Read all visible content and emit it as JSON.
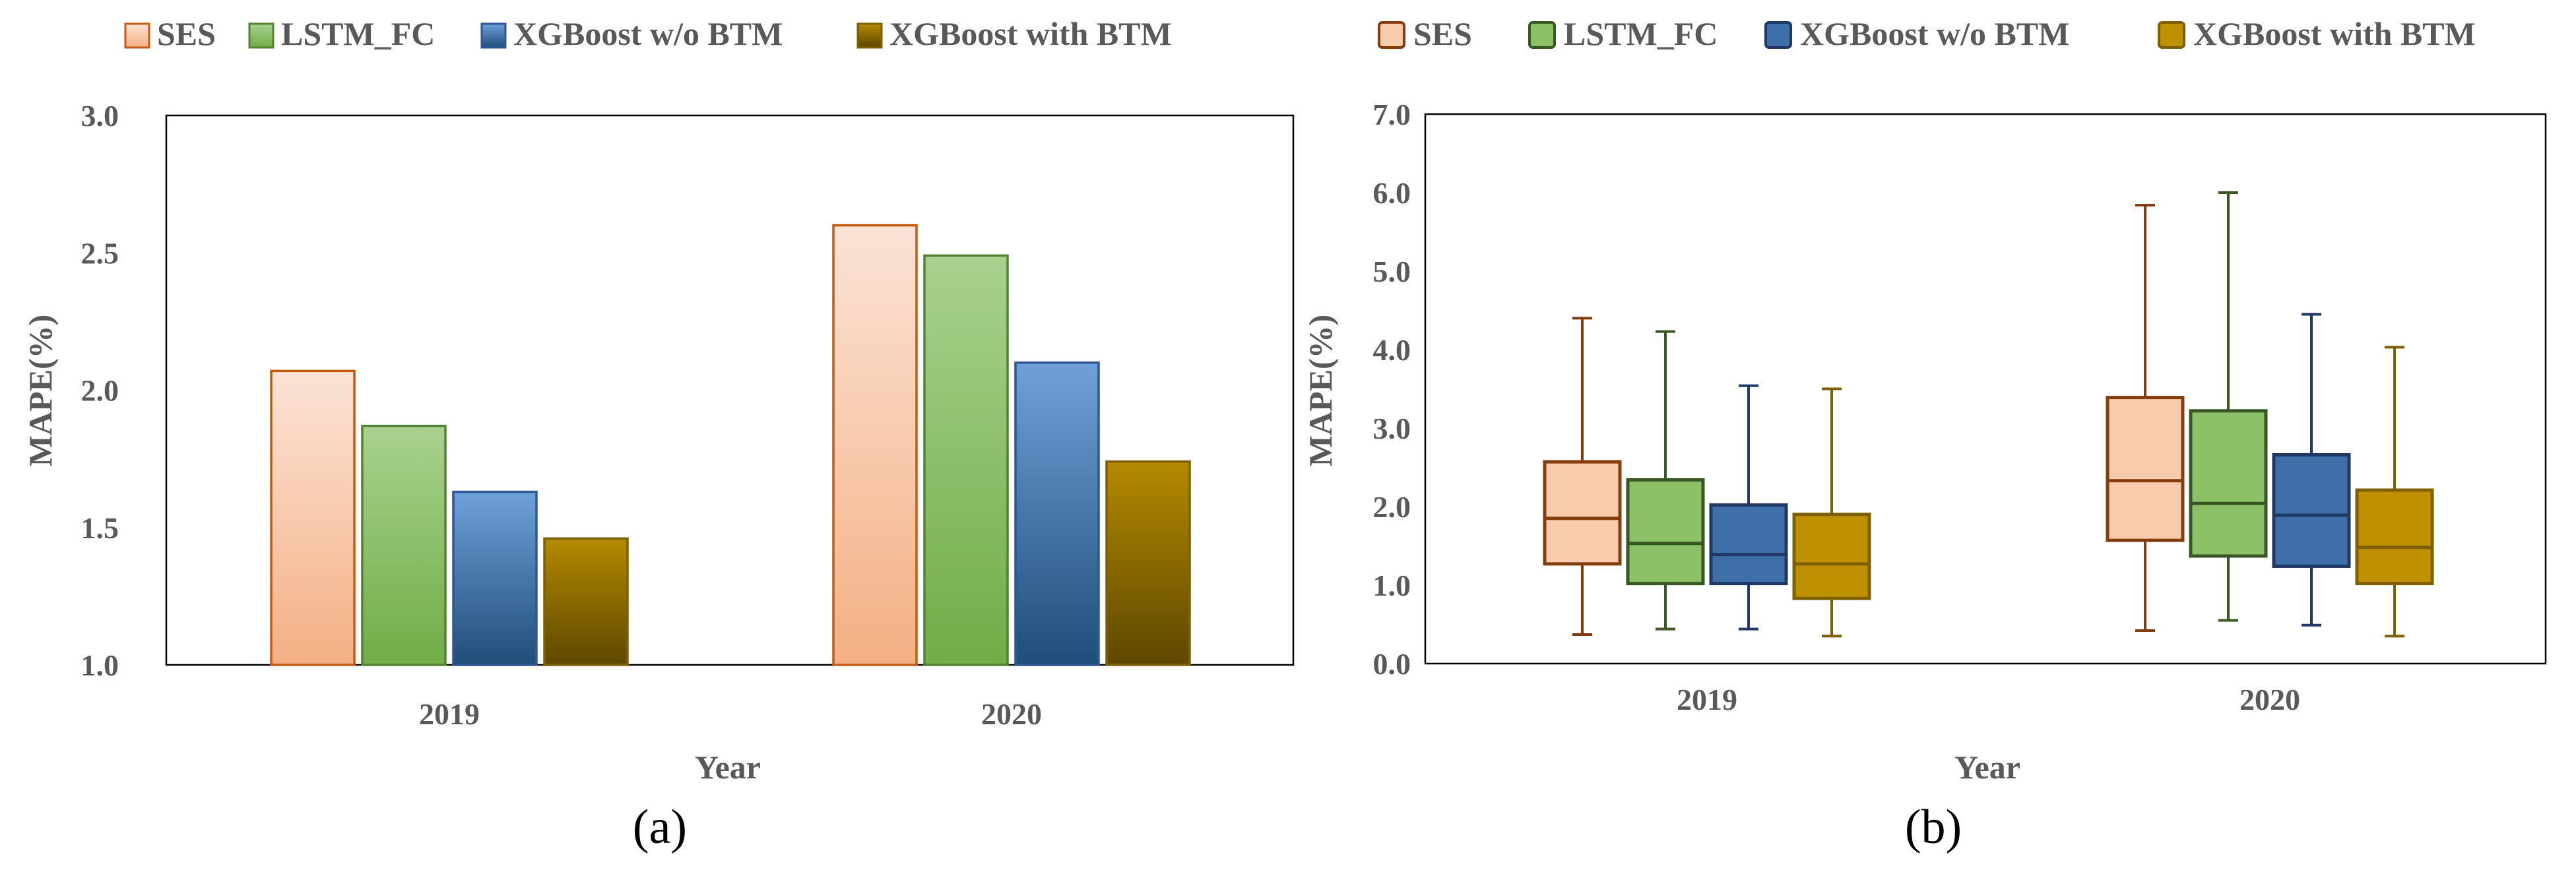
{
  "figure": {
    "panel_a_label": "(a)",
    "panel_b_label": "(b)"
  },
  "colors": {
    "ses_stroke": "#C55A11",
    "ses_top": "#FBE3D6",
    "ses_bottom": "#F4B084",
    "lstm_stroke": "#548235",
    "lstm_top": "#A9D18E",
    "lstm_bottom": "#70AD47",
    "xgb_stroke": "#2F5597",
    "xgb_top": "#6FA0D9",
    "xgb_bottom": "#1F4E79",
    "xgbbtm_stroke": "#7F6000",
    "xgbbtm_top": "#B48A00",
    "xgbbtm_bottom": "#5E4700",
    "box_ses_stroke": "#843C0C",
    "box_ses_fill": "#F8CBAD",
    "box_lstm_stroke": "#385723",
    "box_lstm_fill": "#8CC168",
    "box_xgb_stroke": "#203864",
    "box_xgb_fill": "#3F6FA8",
    "box_xgbbtm_stroke": "#7F6000",
    "box_xgbbtm_fill": "#BF9000",
    "text": "#595959",
    "axis": "#000000"
  },
  "chart_data": [
    {
      "type": "bar",
      "title": "",
      "xlabel": "Year",
      "ylabel": "MAPE(%)",
      "ylim": [
        1.0,
        3.0
      ],
      "yticks": [
        "1.0",
        "1.5",
        "2.0",
        "2.5",
        "3.0"
      ],
      "ytick_values": [
        1.0,
        1.5,
        2.0,
        2.5,
        3.0
      ],
      "legend_position": "top",
      "categories": [
        "2019",
        "2020"
      ],
      "series": [
        {
          "name": "SES",
          "key": "ses",
          "values": [
            2.07,
            2.6
          ]
        },
        {
          "name": "LSTM_FC",
          "key": "lstm",
          "values": [
            1.87,
            2.49
          ]
        },
        {
          "name": "XGBoost w/o BTM",
          "key": "xgb",
          "values": [
            1.63,
            2.1
          ]
        },
        {
          "name": "XGBoost with BTM",
          "key": "xgbbtm",
          "values": [
            1.46,
            1.74
          ]
        }
      ]
    },
    {
      "type": "box",
      "title": "",
      "xlabel": "Year",
      "ylabel": "MAPE(%)",
      "ylim": [
        0.0,
        7.0
      ],
      "yticks": [
        "0.0",
        "1.0",
        "2.0",
        "3.0",
        "4.0",
        "5.0",
        "6.0",
        "7.0"
      ],
      "ytick_values": [
        0,
        1,
        2,
        3,
        4,
        5,
        6,
        7
      ],
      "legend_position": "top",
      "categories": [
        "2019",
        "2020"
      ],
      "series": [
        {
          "name": "SES",
          "key": "ses",
          "boxes": [
            {
              "min": 0.37,
              "q1": 1.27,
              "median": 1.85,
              "q3": 2.57,
              "max": 4.4
            },
            {
              "min": 0.42,
              "q1": 1.57,
              "median": 2.33,
              "q3": 3.39,
              "max": 5.84
            }
          ]
        },
        {
          "name": "LSTM_FC",
          "key": "lstm",
          "boxes": [
            {
              "min": 0.44,
              "q1": 1.02,
              "median": 1.53,
              "q3": 2.34,
              "max": 4.23
            },
            {
              "min": 0.55,
              "q1": 1.37,
              "median": 2.04,
              "q3": 3.22,
              "max": 6.0
            }
          ]
        },
        {
          "name": "XGBoost w/o BTM",
          "key": "xgb",
          "boxes": [
            {
              "min": 0.44,
              "q1": 1.02,
              "median": 1.39,
              "q3": 2.02,
              "max": 3.54
            },
            {
              "min": 0.49,
              "q1": 1.24,
              "median": 1.89,
              "q3": 2.66,
              "max": 4.45
            }
          ]
        },
        {
          "name": "XGBoost with BTM",
          "key": "xgbbtm",
          "boxes": [
            {
              "min": 0.35,
              "q1": 0.83,
              "median": 1.27,
              "q3": 1.9,
              "max": 3.5
            },
            {
              "min": 0.35,
              "q1": 1.02,
              "median": 1.48,
              "q3": 2.21,
              "max": 4.03
            }
          ]
        }
      ]
    }
  ]
}
